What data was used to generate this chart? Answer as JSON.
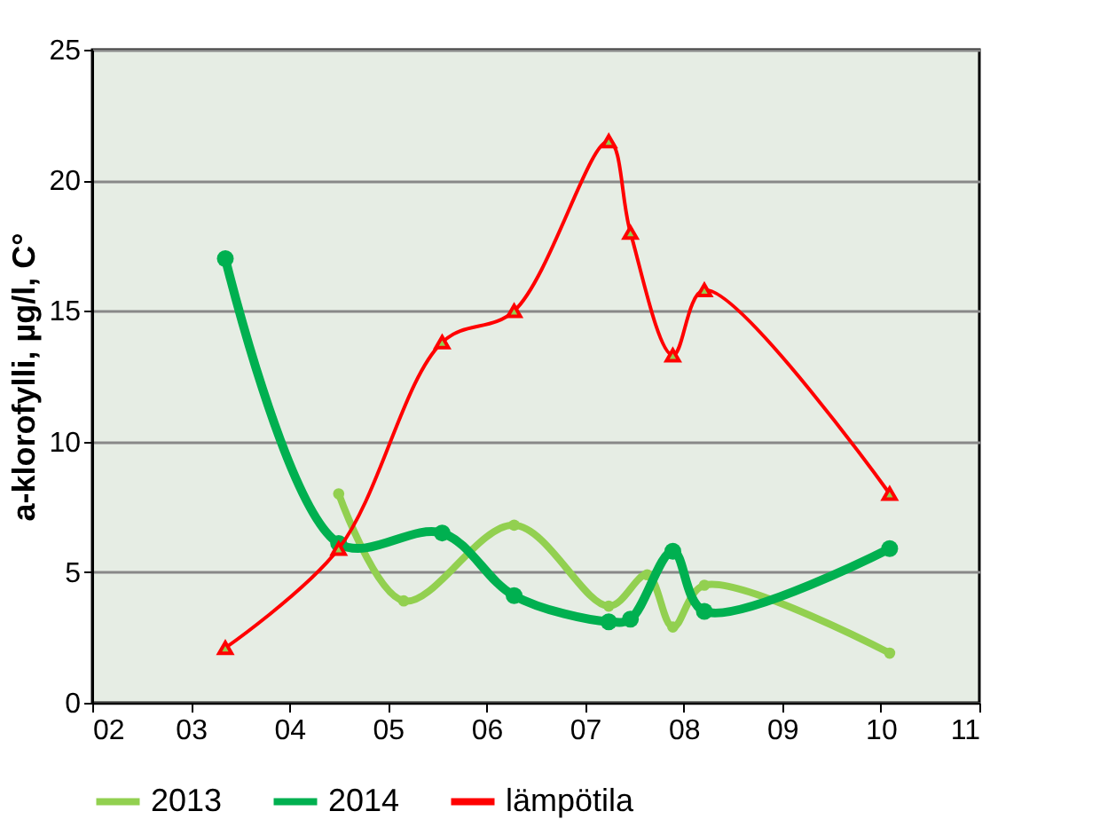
{
  "chart_data": {
    "type": "line",
    "ylabel": "a-klorofylli, µg/l, C°",
    "xlim": [
      2,
      11
    ],
    "xticks": [
      {
        "value": 2,
        "label": "02"
      },
      {
        "value": 3,
        "label": "03"
      },
      {
        "value": 4,
        "label": "04"
      },
      {
        "value": 5,
        "label": "05"
      },
      {
        "value": 6,
        "label": "06"
      },
      {
        "value": 7,
        "label": "07"
      },
      {
        "value": 8,
        "label": "08"
      },
      {
        "value": 9,
        "label": "09"
      },
      {
        "value": 10,
        "label": "10"
      },
      {
        "value": 11,
        "label": "11"
      }
    ],
    "ylim": [
      0,
      25
    ],
    "yticks": [
      0,
      5,
      10,
      15,
      20,
      25
    ],
    "grid": "y",
    "legend": "bottom",
    "series": [
      {
        "name": "2013",
        "color": "#92d050",
        "marker": "circle",
        "x": [
          4.5,
          5.16,
          6.28,
          7.24,
          7.63,
          7.89,
          8.21,
          10.09
        ],
        "values": [
          8.0,
          3.9,
          6.8,
          3.7,
          4.9,
          2.9,
          4.5,
          1.9
        ]
      },
      {
        "name": "2014",
        "color": "#00b050",
        "marker": "circle",
        "x": [
          3.35,
          4.5,
          5.55,
          6.28,
          7.24,
          7.46,
          7.89,
          8.21,
          10.09
        ],
        "values": [
          17.0,
          6.1,
          6.5,
          4.1,
          3.1,
          3.2,
          5.8,
          3.5,
          5.9
        ]
      },
      {
        "name": "lämpötila",
        "color": "#ff0000",
        "marker": "triangle",
        "x": [
          3.35,
          4.5,
          5.55,
          6.28,
          7.24,
          7.46,
          7.89,
          8.21,
          10.09
        ],
        "values": [
          2.1,
          5.9,
          13.8,
          15.0,
          21.5,
          18.0,
          13.3,
          15.8,
          8.0
        ]
      }
    ]
  }
}
